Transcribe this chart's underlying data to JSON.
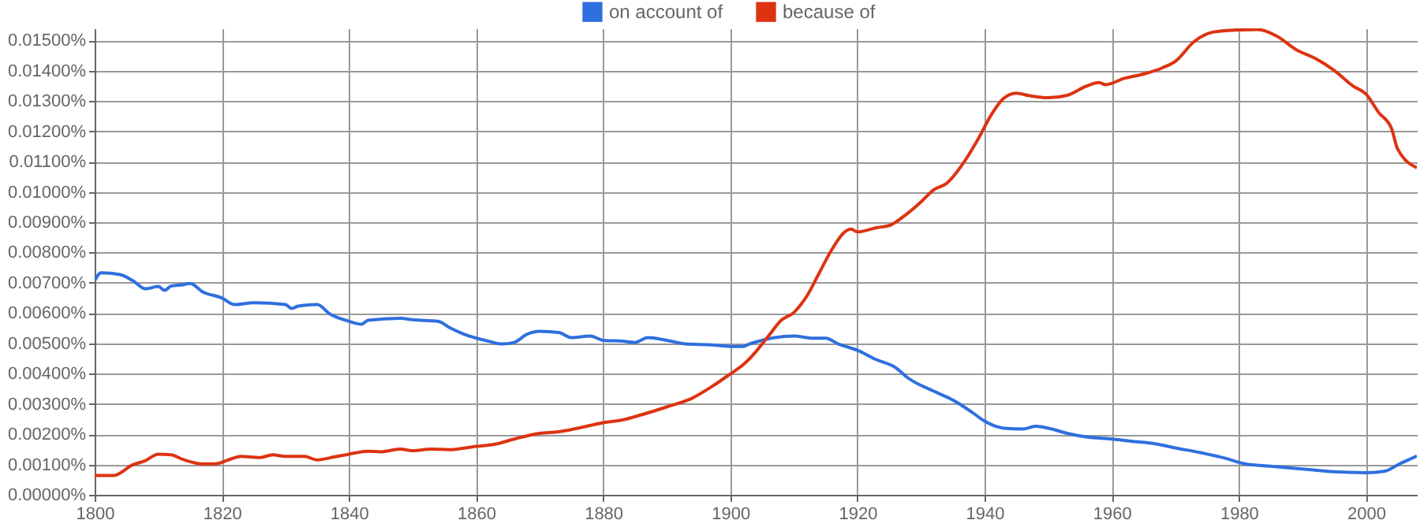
{
  "chart_data": {
    "type": "line",
    "legend": "top",
    "grid": true,
    "xlim": [
      1800,
      2008
    ],
    "xticks": [
      1800,
      1820,
      1840,
      1860,
      1880,
      1900,
      1920,
      1940,
      1960,
      1980,
      2000
    ],
    "ylim": [
      0,
      0.0154
    ],
    "yticks": [
      {
        "value": 0,
        "label": "0.00000%"
      },
      {
        "value": 0.001,
        "label": "0.00100%"
      },
      {
        "value": 0.002,
        "label": "0.00200%"
      },
      {
        "value": 0.003,
        "label": "0.00300%"
      },
      {
        "value": 0.004,
        "label": "0.00400%"
      },
      {
        "value": 0.005,
        "label": "0.00500%"
      },
      {
        "value": 0.006,
        "label": "0.00600%"
      },
      {
        "value": 0.007,
        "label": "0.00700%"
      },
      {
        "value": 0.008,
        "label": "0.00800%"
      },
      {
        "value": 0.009,
        "label": "0.00900%"
      },
      {
        "value": 0.01,
        "label": "0.01000%"
      },
      {
        "value": 0.011,
        "label": "0.01100%"
      },
      {
        "value": 0.012,
        "label": "0.01200%"
      },
      {
        "value": 0.013,
        "label": "0.01300%"
      },
      {
        "value": 0.014,
        "label": "0.01400%"
      },
      {
        "value": 0.015,
        "label": "0.01500%"
      }
    ],
    "series": [
      {
        "name": "on account of",
        "color": "#2f6fde",
        "x": [
          1800,
          1801,
          1804,
          1806,
          1808,
          1810,
          1811,
          1812,
          1814,
          1815,
          1817,
          1820,
          1822,
          1825,
          1830,
          1831,
          1832,
          1835,
          1837,
          1840,
          1842,
          1843,
          1848,
          1850,
          1854,
          1856,
          1858,
          1862,
          1864,
          1866,
          1868,
          1870,
          1873,
          1875,
          1878,
          1880,
          1883,
          1885,
          1887,
          1890,
          1893,
          1897,
          1900,
          1902,
          1903,
          1905,
          1907,
          1910,
          1913,
          1915,
          1917,
          1920,
          1923,
          1926,
          1928,
          1932,
          1935,
          1938,
          1940,
          1943,
          1946,
          1948,
          1950,
          1953,
          1956,
          1960,
          1963,
          1967,
          1970,
          1974,
          1978,
          1981,
          1985,
          1990,
          1995,
          2000,
          2003,
          2005,
          2008
        ],
        "values": [
          0.00707,
          0.00733,
          0.00727,
          0.00707,
          0.0068,
          0.00688,
          0.00675,
          0.00689,
          0.00694,
          0.00698,
          0.0067,
          0.0065,
          0.00628,
          0.00634,
          0.00628,
          0.00615,
          0.00623,
          0.00628,
          0.00597,
          0.00573,
          0.00563,
          0.00576,
          0.00583,
          0.00578,
          0.00573,
          0.0055,
          0.00531,
          0.00507,
          0.00498,
          0.00503,
          0.0053,
          0.0054,
          0.00536,
          0.00519,
          0.00524,
          0.0051,
          0.00507,
          0.00503,
          0.00519,
          0.0051,
          0.00498,
          0.00495,
          0.0049,
          0.0049,
          0.00498,
          0.0051,
          0.00519,
          0.00524,
          0.00517,
          0.00517,
          0.00498,
          0.00477,
          0.00446,
          0.0042,
          0.00385,
          0.00342,
          0.00313,
          0.00273,
          0.00243,
          0.0022,
          0.00217,
          0.00226,
          0.0022,
          0.00203,
          0.00191,
          0.00184,
          0.00177,
          0.00168,
          0.00155,
          0.00139,
          0.0012,
          0.00102,
          0.00094,
          0.00085,
          0.00076,
          0.00073,
          0.00078,
          0.00099,
          0.00128
        ]
      },
      {
        "name": "because of",
        "color": "#dd3311",
        "x": [
          1800,
          1803,
          1806,
          1808,
          1810,
          1812,
          1814,
          1817,
          1819,
          1821,
          1823,
          1826,
          1828,
          1830,
          1833,
          1835,
          1837,
          1840,
          1843,
          1845,
          1848,
          1850,
          1853,
          1856,
          1860,
          1863,
          1866,
          1870,
          1873,
          1876,
          1880,
          1883,
          1886,
          1890,
          1894,
          1897,
          1900,
          1902,
          1904,
          1906,
          1908,
          1910,
          1912,
          1914,
          1916,
          1918,
          1919,
          1920,
          1923,
          1925,
          1927,
          1930,
          1932,
          1934,
          1937,
          1939,
          1941,
          1943,
          1945,
          1947,
          1950,
          1953,
          1956,
          1958,
          1959,
          1962,
          1965,
          1968,
          1970,
          1973,
          1976,
          1980,
          1983,
          1986,
          1989,
          1992,
          1995,
          1998,
          2000,
          2002,
          2004,
          2005,
          2008
        ],
        "values": [
          0.00064,
          0.00064,
          0.00099,
          0.00113,
          0.00134,
          0.00132,
          0.00116,
          0.00102,
          0.00102,
          0.00115,
          0.00127,
          0.00123,
          0.00132,
          0.00127,
          0.00127,
          0.00115,
          0.00122,
          0.00134,
          0.00144,
          0.00142,
          0.00151,
          0.00146,
          0.00151,
          0.00149,
          0.0016,
          0.00167,
          0.00184,
          0.00203,
          0.00208,
          0.0022,
          0.00238,
          0.00247,
          0.00264,
          0.0029,
          0.00319,
          0.00356,
          0.00399,
          0.00429,
          0.00472,
          0.00524,
          0.00576,
          0.00602,
          0.00655,
          0.00733,
          0.00811,
          0.00868,
          0.00877,
          0.00868,
          0.00882,
          0.00889,
          0.00915,
          0.00967,
          0.01007,
          0.01028,
          0.01106,
          0.01175,
          0.01253,
          0.01309,
          0.01326,
          0.01318,
          0.01311,
          0.01319,
          0.01349,
          0.01361,
          0.01354,
          0.01375,
          0.01389,
          0.0141,
          0.01431,
          0.01497,
          0.01528,
          0.01535,
          0.01536,
          0.01514,
          0.0147,
          0.01441,
          0.01401,
          0.01349,
          0.01323,
          0.01262,
          0.0121,
          0.01141,
          0.0108
        ]
      }
    ]
  }
}
